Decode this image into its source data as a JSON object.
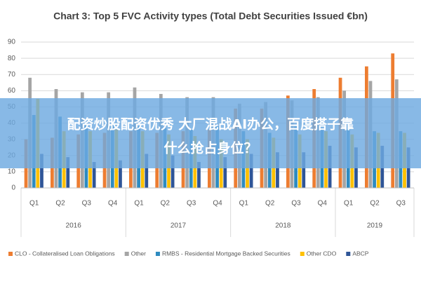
{
  "chart_data": {
    "type": "bar",
    "title": "Chart 3: Top 5 FVC Activity types (Total Debt Securities Issued €bn)",
    "groups": [
      {
        "label": "2016",
        "categories": [
          "Q1",
          "Q2",
          "Q3",
          "Q4"
        ]
      },
      {
        "label": "2017",
        "categories": [
          "Q1",
          "Q2",
          "Q3",
          "Q4"
        ]
      },
      {
        "label": "2018",
        "categories": [
          "Q1",
          "Q2",
          "Q3",
          "Q4"
        ]
      },
      {
        "label": "2019",
        "categories": [
          "Q1",
          "Q2",
          "Q3"
        ]
      }
    ],
    "series": [
      {
        "name": "CLO - Collateralised Loan Obligations",
        "color": "#ed7d31",
        "values": [
          30,
          31,
          33,
          34,
          35,
          34,
          35,
          36,
          49,
          49,
          57,
          61,
          68,
          75,
          83
        ]
      },
      {
        "name": "Other",
        "color": "#a5a5a5",
        "values": [
          68,
          61,
          59,
          59,
          62,
          58,
          56,
          56,
          52,
          53,
          54,
          56,
          60,
          66,
          67
        ]
      },
      {
        "name": "RMBS - Residential Mortgage Backed Securities",
        "color": "#2e8bc0",
        "values": [
          45,
          44,
          40,
          40,
          38,
          37,
          36,
          38,
          35,
          34,
          38,
          37,
          36,
          35,
          35
        ]
      },
      {
        "name": "Other CDO",
        "color": "#ffc000",
        "values": [
          55,
          35,
          35,
          36,
          35,
          33,
          32,
          30,
          30,
          31,
          33,
          35,
          33,
          34,
          34
        ]
      },
      {
        "name": "ABCP",
        "color": "#2f5597",
        "values": [
          21,
          19,
          16,
          17,
          21,
          20,
          16,
          19,
          21,
          22,
          22,
          26,
          25,
          26,
          25
        ]
      }
    ],
    "ylim": [
      0,
      90
    ],
    "yticks": [
      0,
      10,
      20,
      30,
      40,
      50,
      60,
      70,
      80,
      90
    ],
    "grid": true,
    "legend": "bottom"
  },
  "overlay": {
    "lines": [
      "配资炒股配资优秀 大厂混战AI办公，百度搭子靠",
      "什么抢占身位？"
    ]
  }
}
